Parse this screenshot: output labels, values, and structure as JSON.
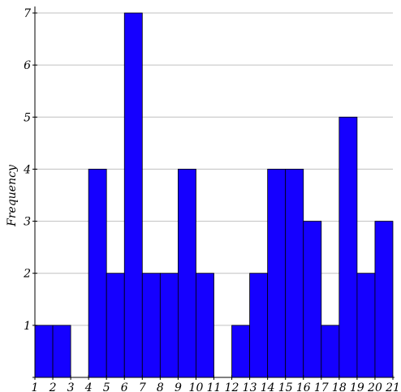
{
  "chart_data": {
    "type": "bar",
    "title": "",
    "xlabel": "",
    "ylabel": "Frequency",
    "xlim": [
      1,
      21
    ],
    "ylim": [
      0,
      7
    ],
    "grid": true,
    "bar_color": "#1500ff",
    "grid_color": "#c0c0c0",
    "x_ticks": [
      "1",
      "2",
      "3",
      "4",
      "5",
      "6",
      "7",
      "8",
      "9",
      "10",
      "11",
      "12",
      "13",
      "14",
      "15",
      "16",
      "17",
      "18",
      "19",
      "20",
      "21"
    ],
    "y_ticks": [
      "1",
      "2",
      "3",
      "4",
      "5",
      "6",
      "7"
    ],
    "bins": [
      {
        "start": 1,
        "end": 2,
        "value": 1
      },
      {
        "start": 2,
        "end": 3,
        "value": 1
      },
      {
        "start": 3,
        "end": 4,
        "value": 0
      },
      {
        "start": 4,
        "end": 5,
        "value": 4
      },
      {
        "start": 5,
        "end": 6,
        "value": 2
      },
      {
        "start": 6,
        "end": 7,
        "value": 7
      },
      {
        "start": 7,
        "end": 8,
        "value": 2
      },
      {
        "start": 8,
        "end": 9,
        "value": 2
      },
      {
        "start": 9,
        "end": 10,
        "value": 4
      },
      {
        "start": 10,
        "end": 11,
        "value": 2
      },
      {
        "start": 11,
        "end": 12,
        "value": 0
      },
      {
        "start": 12,
        "end": 13,
        "value": 1
      },
      {
        "start": 13,
        "end": 14,
        "value": 2
      },
      {
        "start": 14,
        "end": 15,
        "value": 4
      },
      {
        "start": 15,
        "end": 16,
        "value": 4
      },
      {
        "start": 16,
        "end": 17,
        "value": 3
      },
      {
        "start": 17,
        "end": 18,
        "value": 1
      },
      {
        "start": 18,
        "end": 19,
        "value": 5
      },
      {
        "start": 19,
        "end": 20,
        "value": 2
      },
      {
        "start": 20,
        "end": 21,
        "value": 3
      }
    ]
  }
}
